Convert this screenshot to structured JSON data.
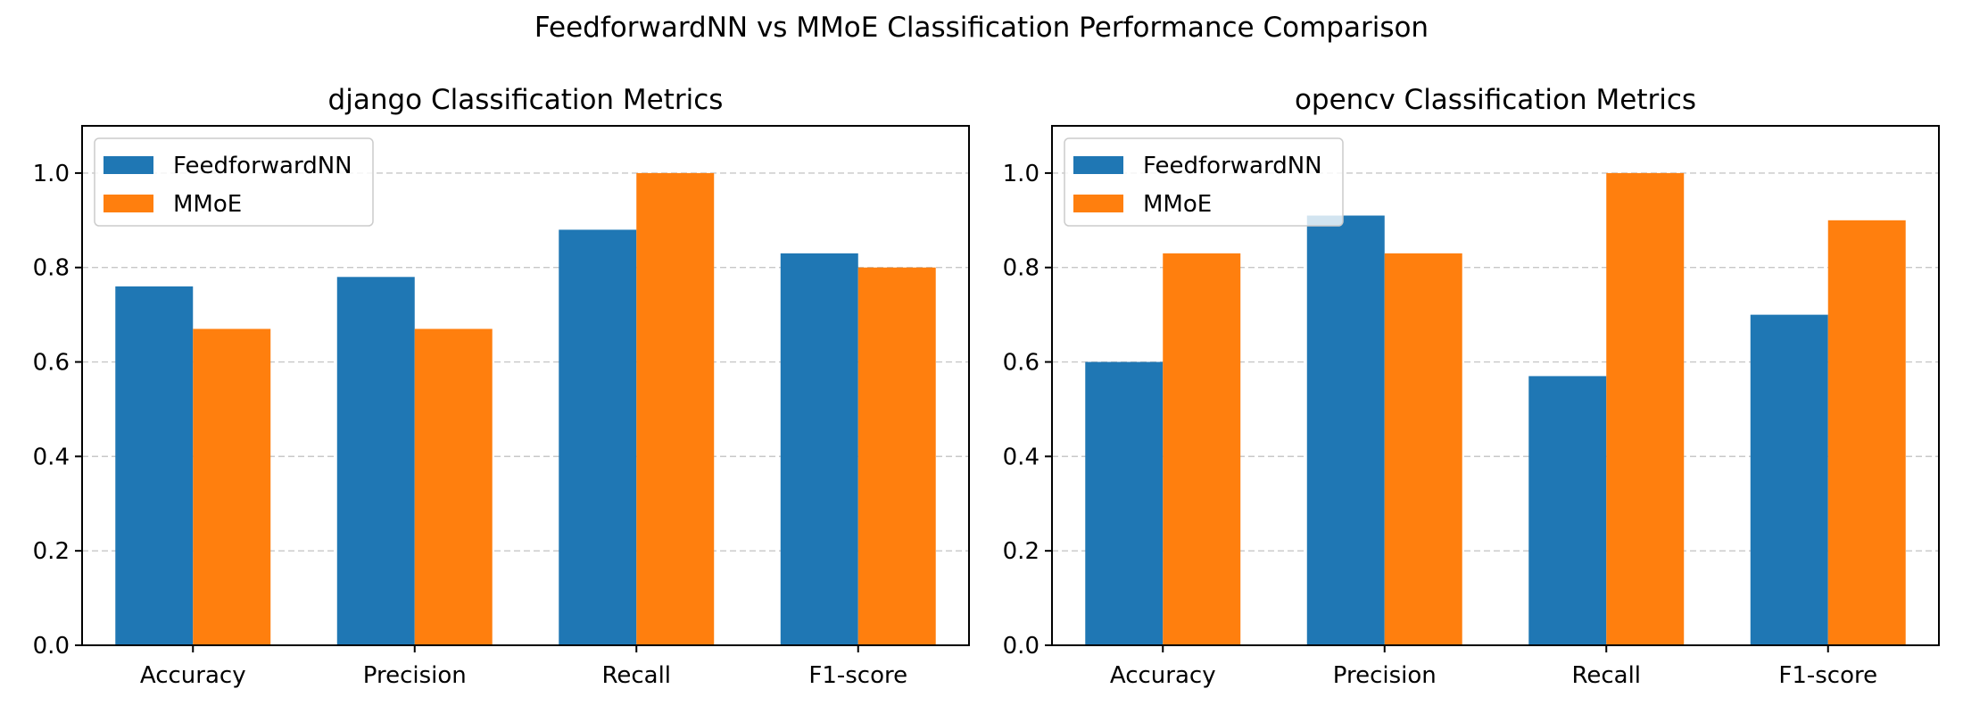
{
  "figure": {
    "title": "FeedforwardNN vs MMoE Classification Performance Comparison"
  },
  "chart_data": [
    {
      "type": "bar",
      "title": "django Classification Metrics",
      "categories": [
        "Accuracy",
        "Precision",
        "Recall",
        "F1-score"
      ],
      "series": [
        {
          "name": "FeedforwardNN",
          "color": "#1f77b4",
          "values": [
            0.76,
            0.78,
            0.88,
            0.83
          ]
        },
        {
          "name": "MMoE",
          "color": "#ff7f0e",
          "values": [
            0.67,
            0.67,
            1.0,
            0.8
          ]
        }
      ],
      "ylim": [
        0,
        1.1
      ],
      "yticks": [
        0.0,
        0.2,
        0.4,
        0.6,
        0.8,
        1.0
      ],
      "ytick_labels": [
        "0.0",
        "0.2",
        "0.4",
        "0.6",
        "0.8",
        "1.0"
      ],
      "xlabel": "",
      "ylabel": "",
      "grid": "y-dashed",
      "legend": "upper-left"
    },
    {
      "type": "bar",
      "title": "opencv Classification Metrics",
      "categories": [
        "Accuracy",
        "Precision",
        "Recall",
        "F1-score"
      ],
      "series": [
        {
          "name": "FeedforwardNN",
          "color": "#1f77b4",
          "values": [
            0.6,
            0.91,
            0.57,
            0.7
          ]
        },
        {
          "name": "MMoE",
          "color": "#ff7f0e",
          "values": [
            0.83,
            0.83,
            1.0,
            0.9
          ]
        }
      ],
      "ylim": [
        0,
        1.1
      ],
      "yticks": [
        0.0,
        0.2,
        0.4,
        0.6,
        0.8,
        1.0
      ],
      "ytick_labels": [
        "0.0",
        "0.2",
        "0.4",
        "0.6",
        "0.8",
        "1.0"
      ],
      "xlabel": "",
      "ylabel": "",
      "grid": "y-dashed",
      "legend": "upper-left"
    }
  ]
}
